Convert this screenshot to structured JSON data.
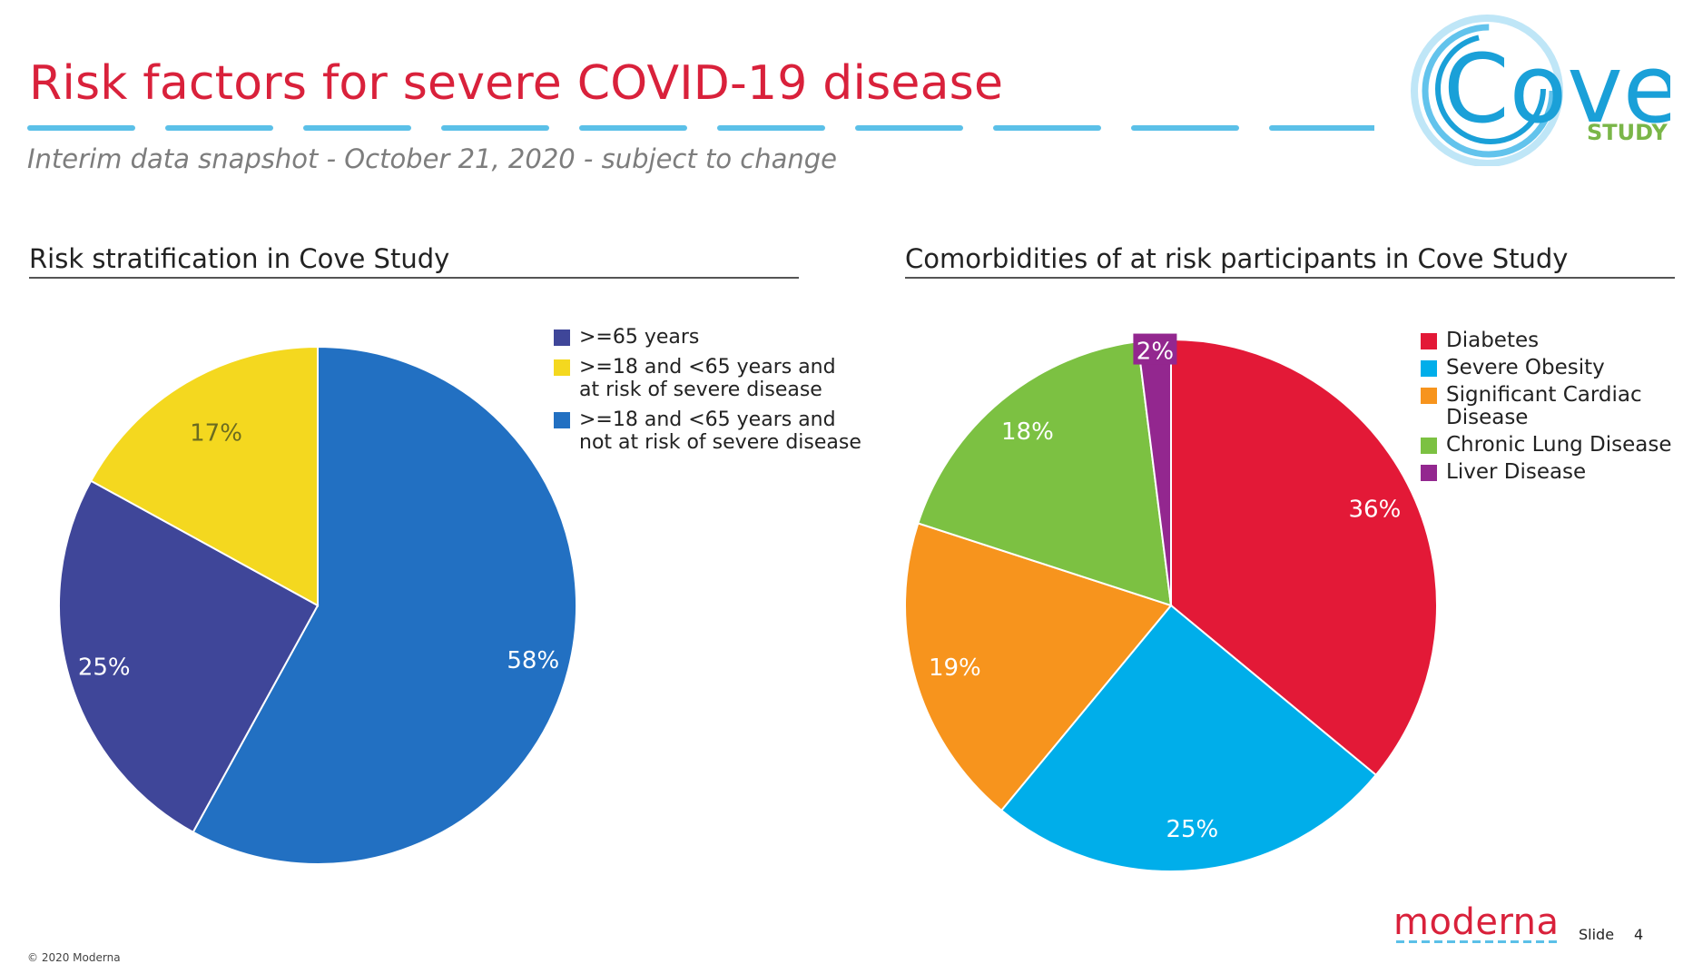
{
  "header": {
    "title": "Risk factors for severe COVID-19 disease",
    "subtitle": "Interim data snapshot - October 21, 2020 - subject to change",
    "dash_color": "#5bc0e8"
  },
  "logo": {
    "word": "Cove",
    "tag": "STUDY",
    "ring_color": "#1aa0d8",
    "tag_color": "#7ab648"
  },
  "chart_data": [
    {
      "type": "pie",
      "title": "Risk stratification in Cove Study",
      "legend_position": "top-right",
      "slices": [
        {
          "label": ">=65 years",
          "value": 25,
          "display": "25%",
          "color": "#3f4699"
        },
        {
          "label": ">=18 and <65 years and\nat risk of severe disease",
          "value": 17,
          "display": "17%",
          "color": "#f4d81f"
        },
        {
          "label": ">=18 and <65 years and\nnot at risk of severe disease",
          "value": 58,
          "display": "58%",
          "color": "#2270c2"
        }
      ],
      "draw_order": [
        2,
        0,
        1
      ]
    },
    {
      "type": "pie",
      "title": "Comorbidities of at risk participants in Cove Study",
      "legend_position": "top-right",
      "slices": [
        {
          "label": "Diabetes",
          "value": 36,
          "display": "36%",
          "color": "#e31937"
        },
        {
          "label": "Severe Obesity",
          "value": 25,
          "display": "25%",
          "color": "#00aeea"
        },
        {
          "label": "Significant Cardiac Disease",
          "value": 19,
          "display": "19%",
          "color": "#f7941d"
        },
        {
          "label": "Chronic Lung Disease",
          "value": 18,
          "display": "18%",
          "color": "#7cc142"
        },
        {
          "label": "Liver Disease",
          "value": 2,
          "display": "2%",
          "color": "#93278f"
        }
      ],
      "draw_order": [
        0,
        1,
        2,
        3,
        4
      ]
    }
  ],
  "footer": {
    "brand": "moderna",
    "slide_label": "Slide",
    "slide_number": "4",
    "copyright": "© 2020 Moderna"
  }
}
